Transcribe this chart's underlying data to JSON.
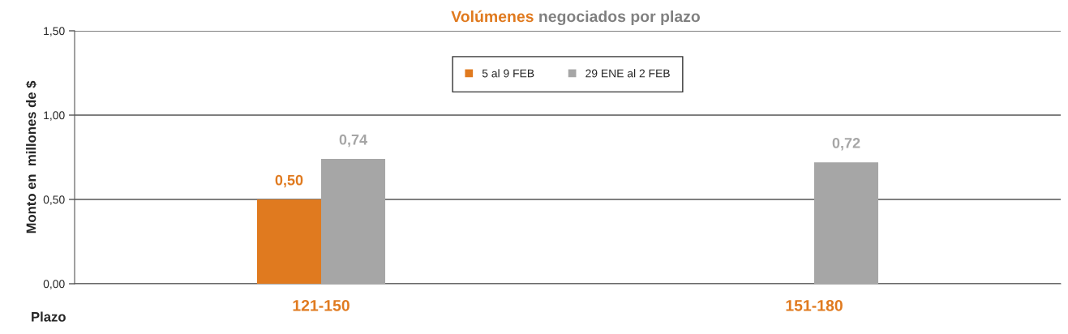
{
  "chart_data": {
    "type": "bar",
    "title": "Volúmenes negociados por plazo",
    "xlabel": "Plazo",
    "ylabel": "Monto en  millones de $",
    "categories": [
      "121-150",
      "151-180"
    ],
    "series": [
      {
        "name": "5 al 9 FEB",
        "color": "#e07a1f",
        "values": [
          0.5,
          null
        ]
      },
      {
        "name": "29 ENE al 2 FEB",
        "color": "#a6a6a6",
        "values": [
          0.74,
          0.72
        ]
      }
    ],
    "ylim": [
      0,
      1.5
    ],
    "yticks": [
      {
        "value": 0,
        "label": "0,00"
      },
      {
        "value": 0.5,
        "label": "0,50"
      },
      {
        "value": 1.0,
        "label": "1,00"
      },
      {
        "value": 1.5,
        "label": "1,50"
      }
    ],
    "value_labels": [
      [
        "0,50",
        null
      ],
      [
        "0,74",
        "0,72"
      ]
    ],
    "grid": "y",
    "legend": "top"
  }
}
